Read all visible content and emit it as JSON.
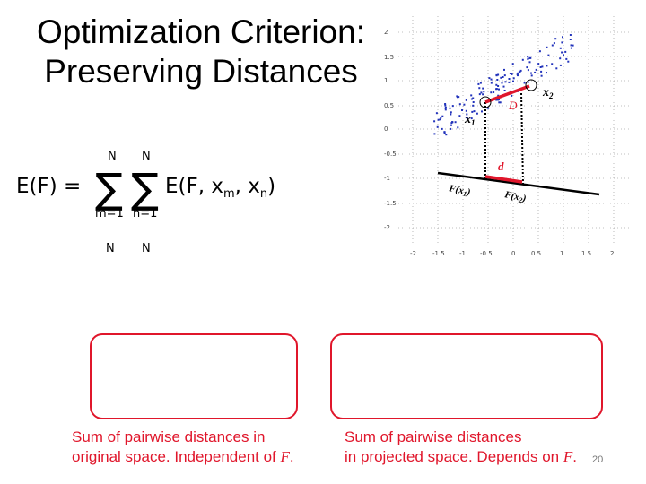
{
  "slide": {
    "title_line1": "Optimization Criterion:",
    "title_line2": "Preserving Distances",
    "page_number": "20"
  },
  "equation": {
    "lhs": "E(F) =",
    "sum_upper_1": "N",
    "sum_lower_1": "m=1",
    "sum_upper_2": "N",
    "sum_lower_2": "n=1",
    "rhs": "E(F, x",
    "rhs_sub_m": "m",
    "rhs_mid": ", x",
    "rhs_sub_n": "n",
    "rhs_end": ")",
    "partial_upper_1": "N",
    "partial_upper_2": "N"
  },
  "figure": {
    "y_tick_labels": [
      "2",
      "1.5",
      "1",
      "0.5",
      "0",
      "-0.5",
      "-1",
      "-1.5",
      "-2"
    ],
    "x_tick_labels": [
      "-2",
      "-1.5",
      "-1",
      "-0.5",
      "0",
      "0.5",
      "1",
      "1.5",
      "2"
    ],
    "label_D": "D",
    "label_d": "d",
    "label_x1": "x",
    "label_x1_sub": "1",
    "label_x2": "x",
    "label_x2_sub": "2",
    "label_Fx1": "F(x",
    "label_Fx1_sub": "1",
    "label_Fx1_end": ")",
    "label_Fx2": "F(x",
    "label_Fx2_sub": "2",
    "label_Fx2_end": ")",
    "point_color": "#2233bb",
    "accent_color": "#e0162b"
  },
  "captions": {
    "left_line1": "Sum of pairwise distances in",
    "left_line2": "original space. Independent of ",
    "left_var": "F",
    "left_end": ".",
    "right_line1": "Sum of pairwise distances",
    "right_line2": "in projected space. Depends on ",
    "right_var": "F",
    "right_end": "."
  }
}
